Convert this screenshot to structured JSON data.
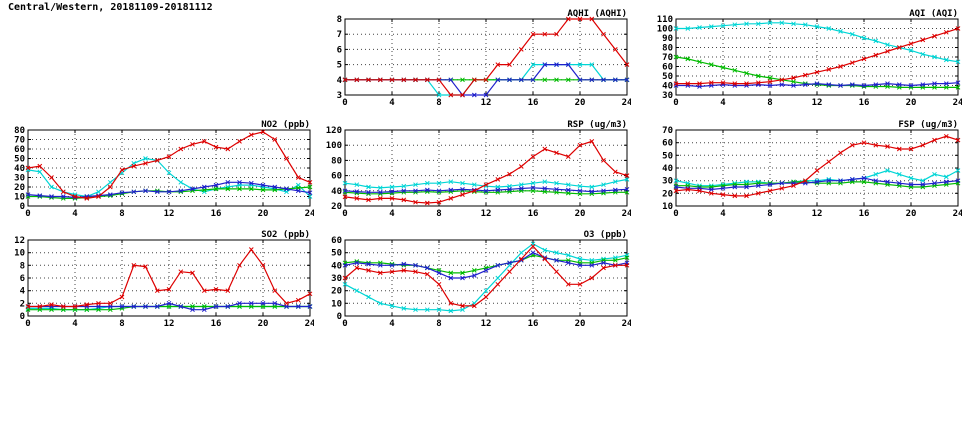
{
  "page_title": "Central/Western, 20181109-20181112",
  "colors": {
    "red": "#dd0000",
    "blue": "#2020cc",
    "green": "#00bb00",
    "cyan": "#00d5d5",
    "grid": "#444444",
    "axis": "#000000"
  },
  "chart_data": [
    {
      "id": "aqhi",
      "type": "line",
      "title": "AQHI (AQHI)",
      "xlabel": "",
      "ylabel": "",
      "xlim": [
        0,
        24
      ],
      "xticks": [
        0,
        4,
        8,
        12,
        16,
        20,
        24
      ],
      "ylim": [
        3,
        8
      ],
      "yticks": [
        3,
        4,
        5,
        6,
        7,
        8
      ],
      "grid": true,
      "marker": "x",
      "series": [
        {
          "name": "series-cyan",
          "color": "cyan",
          "values": [
            4,
            4,
            4,
            4,
            4,
            4,
            4,
            4,
            3,
            3,
            3,
            4,
            4,
            4,
            4,
            4,
            5,
            5,
            5,
            5,
            5,
            5,
            4,
            4,
            4
          ]
        },
        {
          "name": "series-green",
          "color": "green",
          "values": [
            4,
            4,
            4,
            4,
            4,
            4,
            4,
            4,
            4,
            4,
            4,
            4,
            4,
            4,
            4,
            4,
            4,
            4,
            4,
            4,
            4,
            4,
            4,
            4,
            4
          ]
        },
        {
          "name": "series-blue",
          "color": "blue",
          "values": [
            4,
            4,
            4,
            4,
            4,
            4,
            4,
            4,
            4,
            4,
            3,
            3,
            3,
            4,
            4,
            4,
            4,
            5,
            5,
            5,
            4,
            4,
            4,
            4,
            4
          ]
        },
        {
          "name": "series-red",
          "color": "red",
          "values": [
            4,
            4,
            4,
            4,
            4,
            4,
            4,
            4,
            4,
            3,
            3,
            4,
            4,
            5,
            5,
            6,
            7,
            7,
            7,
            8,
            8,
            8,
            7,
            6,
            5
          ]
        }
      ]
    },
    {
      "id": "aqi",
      "type": "line",
      "title": "AQI (AQI)",
      "xlabel": "",
      "ylabel": "",
      "xlim": [
        0,
        24
      ],
      "xticks": [
        0,
        4,
        8,
        12,
        16,
        20,
        24
      ],
      "ylim": [
        30,
        110
      ],
      "yticks": [
        30,
        40,
        50,
        60,
        70,
        80,
        90,
        100,
        110
      ],
      "grid": true,
      "marker": "x",
      "series": [
        {
          "name": "series-cyan",
          "color": "cyan",
          "values": [
            100,
            100,
            101,
            102,
            103,
            104,
            105,
            105,
            106,
            106,
            105,
            104,
            102,
            100,
            97,
            94,
            90,
            87,
            83,
            80,
            77,
            73,
            70,
            67,
            65
          ]
        },
        {
          "name": "series-green",
          "color": "green",
          "values": [
            70,
            68,
            65,
            62,
            59,
            56,
            53,
            50,
            48,
            46,
            44,
            42,
            41,
            40,
            40,
            40,
            39,
            39,
            39,
            38,
            38,
            38,
            38,
            38,
            38
          ]
        },
        {
          "name": "series-blue",
          "color": "blue",
          "values": [
            40,
            40,
            39,
            40,
            41,
            40,
            40,
            41,
            40,
            41,
            40,
            41,
            42,
            41,
            40,
            41,
            40,
            41,
            42,
            41,
            40,
            41,
            42,
            42,
            43
          ]
        },
        {
          "name": "series-red",
          "color": "red",
          "values": [
            42,
            42,
            42,
            43,
            43,
            42,
            42,
            43,
            44,
            46,
            48,
            51,
            54,
            57,
            60,
            64,
            68,
            72,
            76,
            80,
            84,
            88,
            92,
            96,
            100
          ]
        }
      ]
    },
    {
      "id": "no2",
      "type": "line",
      "title": "NO2 (ppb)",
      "xlabel": "",
      "ylabel": "",
      "xlim": [
        0,
        24
      ],
      "xticks": [
        0,
        4,
        8,
        12,
        16,
        20,
        24
      ],
      "ylim": [
        0,
        80
      ],
      "yticks": [
        0,
        10,
        20,
        30,
        40,
        50,
        60,
        70,
        80
      ],
      "grid": true,
      "marker": "x",
      "series": [
        {
          "name": "series-cyan",
          "color": "cyan",
          "values": [
            38,
            36,
            20,
            15,
            12,
            10,
            15,
            25,
            35,
            45,
            50,
            48,
            35,
            25,
            18,
            15,
            18,
            20,
            22,
            22,
            20,
            18,
            15,
            22,
            10
          ]
        },
        {
          "name": "series-green",
          "color": "green",
          "values": [
            10,
            10,
            9,
            8,
            8,
            9,
            10,
            11,
            13,
            15,
            16,
            16,
            15,
            15,
            16,
            17,
            18,
            18,
            18,
            18,
            17,
            17,
            18,
            19,
            20
          ]
        },
        {
          "name": "series-blue",
          "color": "blue",
          "values": [
            12,
            11,
            10,
            10,
            9,
            10,
            11,
            12,
            14,
            15,
            16,
            15,
            15,
            16,
            18,
            20,
            22,
            25,
            25,
            24,
            22,
            20,
            18,
            16,
            14
          ]
        },
        {
          "name": "series-red",
          "color": "red",
          "values": [
            40,
            42,
            30,
            15,
            10,
            8,
            10,
            20,
            38,
            42,
            45,
            48,
            52,
            60,
            65,
            68,
            62,
            60,
            68,
            75,
            78,
            70,
            50,
            30,
            25
          ]
        }
      ]
    },
    {
      "id": "rsp",
      "type": "line",
      "title": "RSP (ug/m3)",
      "xlabel": "",
      "ylabel": "",
      "xlim": [
        0,
        24
      ],
      "xticks": [
        0,
        4,
        8,
        12,
        16,
        20,
        24
      ],
      "ylim": [
        20,
        120
      ],
      "yticks": [
        20,
        40,
        60,
        80,
        100,
        120
      ],
      "grid": true,
      "marker": "x",
      "series": [
        {
          "name": "series-cyan",
          "color": "cyan",
          "values": [
            50,
            48,
            45,
            44,
            45,
            46,
            48,
            50,
            50,
            52,
            50,
            48,
            46,
            45,
            46,
            48,
            50,
            52,
            50,
            48,
            46,
            45,
            48,
            52,
            55
          ]
        },
        {
          "name": "series-green",
          "color": "green",
          "values": [
            38,
            37,
            36,
            36,
            37,
            38,
            38,
            39,
            38,
            39,
            40,
            39,
            38,
            38,
            39,
            40,
            40,
            39,
            38,
            37,
            36,
            36,
            37,
            38,
            38
          ]
        },
        {
          "name": "series-blue",
          "color": "blue",
          "values": [
            40,
            39,
            38,
            38,
            39,
            40,
            40,
            41,
            40,
            41,
            42,
            41,
            40,
            41,
            42,
            43,
            44,
            43,
            42,
            41,
            40,
            39,
            40,
            41,
            42
          ]
        },
        {
          "name": "series-red",
          "color": "red",
          "values": [
            32,
            30,
            28,
            30,
            30,
            28,
            25,
            24,
            25,
            30,
            35,
            40,
            48,
            55,
            62,
            72,
            85,
            95,
            90,
            85,
            100,
            105,
            80,
            65,
            60
          ]
        }
      ]
    },
    {
      "id": "fsp",
      "type": "line",
      "title": "FSP (ug/m3)",
      "xlabel": "",
      "ylabel": "",
      "xlim": [
        0,
        24
      ],
      "xticks": [
        0,
        4,
        8,
        12,
        16,
        20,
        24
      ],
      "ylim": [
        10,
        70
      ],
      "yticks": [
        10,
        20,
        30,
        40,
        50,
        60,
        70
      ],
      "grid": true,
      "marker": "x",
      "series": [
        {
          "name": "series-cyan",
          "color": "cyan",
          "values": [
            30,
            28,
            26,
            26,
            27,
            28,
            29,
            29,
            28,
            28,
            29,
            30,
            30,
            31,
            30,
            31,
            32,
            35,
            38,
            35,
            32,
            30,
            35,
            33,
            38
          ]
        },
        {
          "name": "series-green",
          "color": "green",
          "values": [
            26,
            26,
            25,
            25,
            26,
            27,
            27,
            28,
            28,
            28,
            29,
            29,
            28,
            28,
            28,
            29,
            29,
            28,
            27,
            26,
            25,
            25,
            26,
            27,
            28
          ]
        },
        {
          "name": "series-blue",
          "color": "blue",
          "values": [
            25,
            24,
            24,
            23,
            24,
            25,
            25,
            26,
            27,
            28,
            28,
            28,
            29,
            30,
            30,
            31,
            32,
            30,
            29,
            28,
            27,
            27,
            28,
            29,
            30
          ]
        },
        {
          "name": "series-red",
          "color": "red",
          "values": [
            22,
            23,
            22,
            20,
            19,
            18,
            18,
            20,
            22,
            24,
            26,
            30,
            38,
            45,
            52,
            58,
            60,
            58,
            57,
            55,
            55,
            58,
            62,
            65,
            62
          ]
        }
      ]
    },
    {
      "id": "so2",
      "type": "line",
      "title": "SO2 (ppb)",
      "xlabel": "",
      "ylabel": "",
      "xlim": [
        0,
        24
      ],
      "xticks": [
        0,
        4,
        8,
        12,
        16,
        20,
        24
      ],
      "ylim": [
        0,
        12
      ],
      "yticks": [
        0,
        2,
        4,
        6,
        8,
        10,
        12
      ],
      "grid": true,
      "marker": "x",
      "series": [
        {
          "name": "series-cyan",
          "color": "cyan",
          "values": [
            1.2,
            1.2,
            1.2,
            1,
            1,
            1,
            1.2,
            1.5,
            1.5,
            1.5,
            1.5,
            1.5,
            1.5,
            1.5,
            1.5,
            1.5,
            1.5,
            1.5,
            1.5,
            1.5,
            1.5,
            1.5,
            1.5,
            1.5,
            1.5
          ]
        },
        {
          "name": "series-green",
          "color": "green",
          "values": [
            1,
            1,
            1,
            1,
            1,
            1,
            1,
            1,
            1.2,
            1.5,
            1.5,
            1.5,
            1.5,
            1.5,
            1.5,
            1.5,
            1.5,
            1.5,
            1.5,
            1.5,
            1.5,
            1.5,
            1.5,
            1.5,
            1.5
          ]
        },
        {
          "name": "series-blue",
          "color": "blue",
          "values": [
            1.5,
            1.5,
            1.5,
            1.5,
            1.5,
            1.5,
            1.5,
            1.5,
            1.5,
            1.5,
            1.5,
            1.5,
            2,
            1.5,
            1,
            1,
            1.5,
            1.5,
            2,
            2,
            2,
            2,
            1.5,
            1.5,
            1.5
          ]
        },
        {
          "name": "series-red",
          "color": "red",
          "values": [
            1.5,
            1.5,
            1.8,
            1.5,
            1.5,
            1.8,
            2,
            2,
            3,
            8,
            7.8,
            4,
            4.2,
            7,
            6.8,
            4,
            4.2,
            4,
            8,
            10.5,
            8,
            4,
            2,
            2.5,
            3.5
          ]
        }
      ]
    },
    {
      "id": "o3",
      "type": "line",
      "title": "O3 (ppb)",
      "xlabel": "",
      "ylabel": "",
      "xlim": [
        0,
        24
      ],
      "xticks": [
        0,
        4,
        8,
        12,
        16,
        20,
        24
      ],
      "ylim": [
        0,
        60
      ],
      "yticks": [
        0,
        10,
        20,
        30,
        40,
        50,
        60
      ],
      "grid": true,
      "marker": "x",
      "series": [
        {
          "name": "series-cyan",
          "color": "cyan",
          "values": [
            25,
            20,
            15,
            10,
            8,
            6,
            5,
            5,
            5,
            4,
            5,
            10,
            20,
            30,
            40,
            50,
            57,
            52,
            50,
            48,
            45,
            44,
            45,
            46,
            48
          ]
        },
        {
          "name": "series-green",
          "color": "green",
          "values": [
            42,
            43,
            42,
            42,
            41,
            40,
            40,
            38,
            36,
            34,
            34,
            36,
            38,
            40,
            42,
            44,
            48,
            46,
            44,
            44,
            42,
            42,
            44,
            44,
            46
          ]
        },
        {
          "name": "series-blue",
          "color": "blue",
          "values": [
            40,
            42,
            41,
            40,
            40,
            41,
            40,
            38,
            34,
            30,
            30,
            32,
            36,
            40,
            42,
            44,
            50,
            46,
            44,
            42,
            40,
            40,
            42,
            40,
            42
          ]
        },
        {
          "name": "series-red",
          "color": "red",
          "values": [
            30,
            38,
            36,
            34,
            35,
            36,
            35,
            33,
            25,
            10,
            8,
            8,
            15,
            25,
            35,
            45,
            55,
            45,
            35,
            25,
            25,
            30,
            38,
            40,
            40
          ]
        }
      ]
    }
  ]
}
